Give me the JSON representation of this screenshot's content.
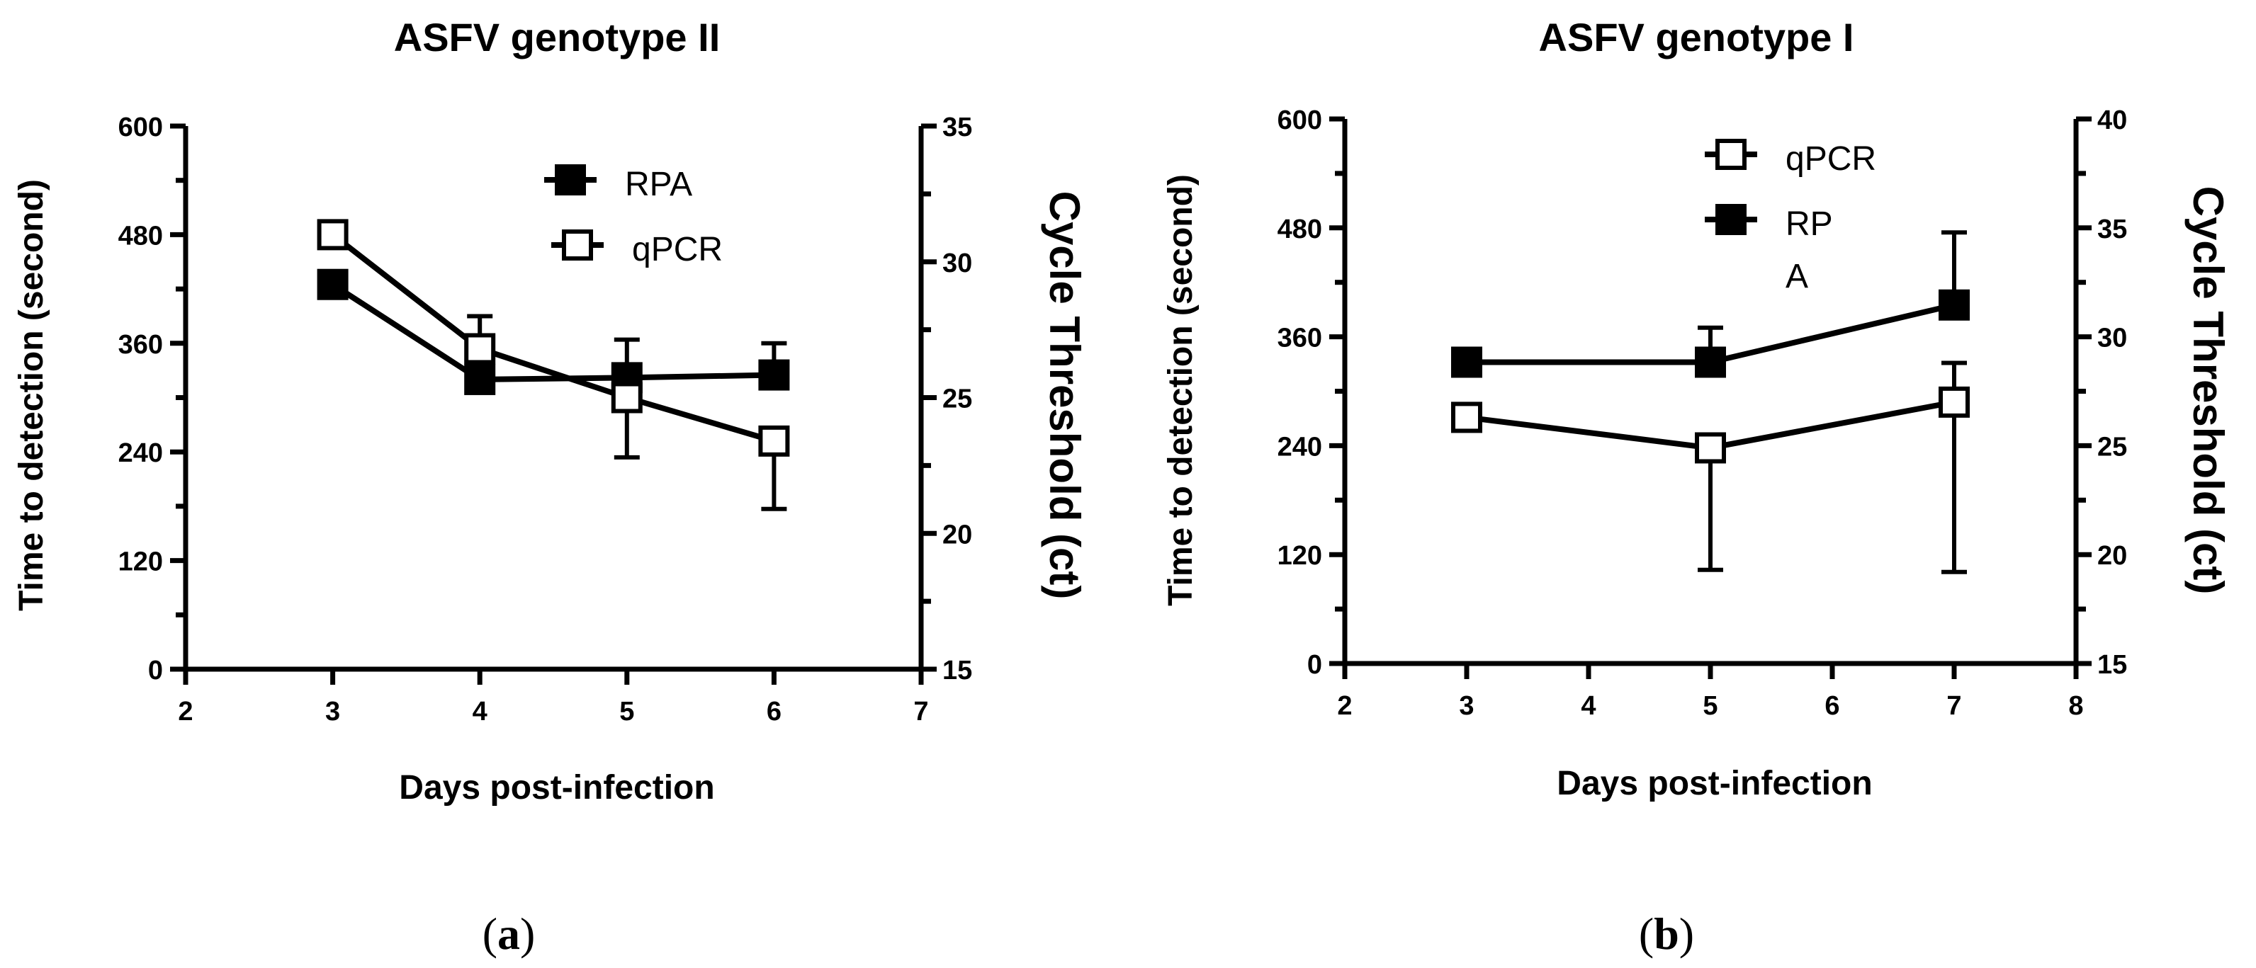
{
  "chart_data": [
    {
      "type": "line",
      "panel_label": "a",
      "title": "ASFV genotype II",
      "xlabel": "Days post-infection",
      "ylabel": "Time to detection (second)",
      "y2label": "Cycle Threshold (ct)",
      "xlim": [
        2,
        7
      ],
      "xticks": [
        "2",
        "3",
        "4",
        "5",
        "6",
        "7"
      ],
      "ylim": [
        0,
        600
      ],
      "yticks": [
        "0",
        "120",
        "240",
        "360",
        "480",
        "600"
      ],
      "y2lim": [
        15,
        35
      ],
      "y2ticks": [
        "15",
        "20",
        "25",
        "30",
        "35"
      ],
      "legend": [
        "RPA",
        "qPCR"
      ],
      "series": [
        {
          "name": "RPA",
          "marker": "filled-square",
          "axis": "left",
          "x": [
            3,
            4,
            5,
            6
          ],
          "y": [
            425,
            320,
            322,
            325
          ],
          "err_low": [
            0,
            0,
            0,
            0
          ],
          "err_high": [
            0,
            0,
            42,
            35
          ]
        },
        {
          "name": "qPCR",
          "marker": "open-square",
          "axis": "right",
          "x": [
            3,
            4,
            5,
            6
          ],
          "y": [
            31.0,
            26.8,
            25.0,
            23.4
          ],
          "err_low": [
            0,
            0,
            2.2,
            2.5
          ],
          "err_high": [
            0,
            1.2,
            0,
            0
          ]
        }
      ]
    },
    {
      "type": "line",
      "panel_label": "b",
      "title": "ASFV genotype I",
      "xlabel": "Days post-infection",
      "ylabel": "Time to detection (second)",
      "y2label": "Cycle Threshold (ct)",
      "xlim": [
        2,
        8
      ],
      "xticks": [
        "2",
        "3",
        "4",
        "5",
        "6",
        "7",
        "8"
      ],
      "ylim": [
        0,
        600
      ],
      "yticks": [
        "0",
        "120",
        "240",
        "360",
        "480",
        "600"
      ],
      "y2lim": [
        15,
        40
      ],
      "y2ticks": [
        "15",
        "20",
        "25",
        "30",
        "35",
        "40"
      ],
      "legend": [
        "qPCR",
        "RP",
        "A"
      ],
      "series": [
        {
          "name": "qPCR",
          "marker": "open-square",
          "axis": "right",
          "x": [
            3,
            5,
            7
          ],
          "y": [
            26.3,
            24.9,
            27.0
          ],
          "err_low": [
            0,
            5.6,
            7.8
          ],
          "err_high": [
            0,
            0,
            1.8
          ]
        },
        {
          "name": "RPA",
          "marker": "filled-square",
          "axis": "left",
          "x": [
            3,
            5,
            7
          ],
          "y": [
            332,
            332,
            395
          ],
          "err_low": [
            0,
            0,
            0
          ],
          "err_high": [
            0,
            38,
            80
          ]
        }
      ]
    }
  ]
}
